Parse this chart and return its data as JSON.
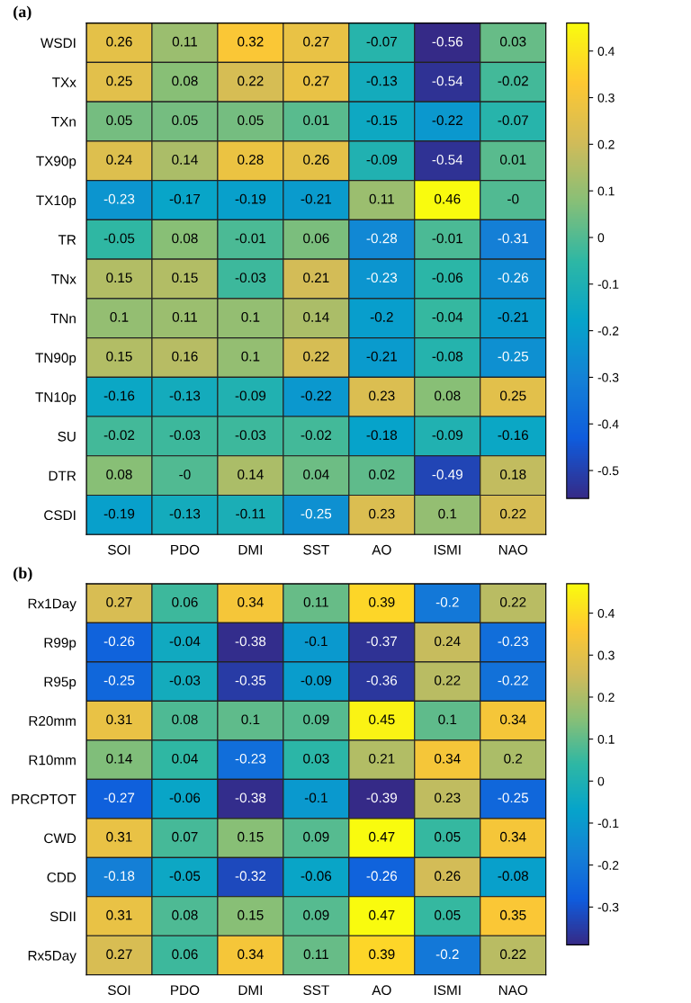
{
  "chart_data": [
    {
      "type": "heatmap",
      "title": "(a)",
      "categories": [
        "SOI",
        "PDO",
        "DMI",
        "SST",
        "AO",
        "ISMI",
        "NAO"
      ],
      "y_categories": [
        "WSDI",
        "TXx",
        "TXn",
        "TX90p",
        "TX10p",
        "TR",
        "TNx",
        "TNn",
        "TN90p",
        "TN10p",
        "SU",
        "DTR",
        "CSDI"
      ],
      "cells": [
        [
          0.26,
          0.11,
          0.32,
          0.27,
          -0.07,
          -0.56,
          0.03
        ],
        [
          0.25,
          0.08,
          0.22,
          0.27,
          -0.13,
          -0.54,
          -0.02
        ],
        [
          0.05,
          0.05,
          0.05,
          0.01,
          -0.15,
          -0.22,
          -0.07
        ],
        [
          0.24,
          0.14,
          0.28,
          0.26,
          -0.09,
          -0.54,
          0.01
        ],
        [
          -0.23,
          -0.17,
          -0.19,
          -0.21,
          0.11,
          0.46,
          -0.0
        ],
        [
          -0.05,
          0.08,
          -0.01,
          0.06,
          -0.28,
          -0.01,
          -0.31
        ],
        [
          0.15,
          0.15,
          -0.03,
          0.21,
          -0.23,
          -0.06,
          -0.26
        ],
        [
          0.1,
          0.11,
          0.1,
          0.14,
          -0.2,
          -0.04,
          -0.21
        ],
        [
          0.15,
          0.16,
          0.1,
          0.22,
          -0.21,
          -0.08,
          -0.25
        ],
        [
          -0.16,
          -0.13,
          -0.09,
          -0.22,
          0.23,
          0.08,
          0.25
        ],
        [
          -0.02,
          -0.03,
          -0.03,
          -0.02,
          -0.18,
          -0.09,
          -0.16
        ],
        [
          0.08,
          -0.0,
          0.14,
          0.04,
          0.02,
          -0.49,
          0.18
        ],
        [
          -0.19,
          -0.13,
          -0.11,
          -0.25,
          0.23,
          0.1,
          0.22
        ]
      ],
      "cell_labels": [
        [
          "0.26",
          "0.11",
          "0.32",
          "0.27",
          "-0.07",
          "-0.56",
          "0.03"
        ],
        [
          "0.25",
          "0.08",
          "0.22",
          "0.27",
          "-0.13",
          "-0.54",
          "-0.02"
        ],
        [
          "0.05",
          "0.05",
          "0.05",
          "0.01",
          "-0.15",
          "-0.22",
          "-0.07"
        ],
        [
          "0.24",
          "0.14",
          "0.28",
          "0.26",
          "-0.09",
          "-0.54",
          "0.01"
        ],
        [
          "-0.23",
          "-0.17",
          "-0.19",
          "-0.21",
          "0.11",
          "0.46",
          "-0"
        ],
        [
          "-0.05",
          "0.08",
          "-0.01",
          "0.06",
          "-0.28",
          "-0.01",
          "-0.31"
        ],
        [
          "0.15",
          "0.15",
          "-0.03",
          "0.21",
          "-0.23",
          "-0.06",
          "-0.26"
        ],
        [
          "0.1",
          "0.11",
          "0.1",
          "0.14",
          "-0.2",
          "-0.04",
          "-0.21"
        ],
        [
          "0.15",
          "0.16",
          "0.1",
          "0.22",
          "-0.21",
          "-0.08",
          "-0.25"
        ],
        [
          "-0.16",
          "-0.13",
          "-0.09",
          "-0.22",
          "0.23",
          "0.08",
          "0.25"
        ],
        [
          "-0.02",
          "-0.03",
          "-0.03",
          "-0.02",
          "-0.18",
          "-0.09",
          "-0.16"
        ],
        [
          "0.08",
          "-0",
          "0.14",
          "0.04",
          "0.02",
          "-0.49",
          "0.18"
        ],
        [
          "-0.19",
          "-0.13",
          "-0.11",
          "-0.25",
          "0.23",
          "0.1",
          "0.22"
        ]
      ],
      "clim": [
        -0.56,
        0.46
      ],
      "cticks": [
        -0.5,
        -0.4,
        -0.3,
        -0.2,
        -0.1,
        0,
        0.1,
        0.2,
        0.3,
        0.4
      ],
      "data_labels": true
    },
    {
      "type": "heatmap",
      "title": "(b)",
      "categories": [
        "SOI",
        "PDO",
        "DMI",
        "SST",
        "AO",
        "ISMI",
        "NAO"
      ],
      "y_categories": [
        "Rx1Day",
        "R99p",
        "R95p",
        "R20mm",
        "R10mm",
        "PRCPTOT",
        "CWD",
        "CDD",
        "SDII",
        "Rx5Day"
      ],
      "cells": [
        [
          0.27,
          0.06,
          0.34,
          0.11,
          0.39,
          -0.2,
          0.22
        ],
        [
          -0.26,
          -0.04,
          -0.38,
          -0.1,
          -0.37,
          0.24,
          -0.23
        ],
        [
          -0.25,
          -0.03,
          -0.35,
          -0.09,
          -0.36,
          0.22,
          -0.22
        ],
        [
          0.31,
          0.08,
          0.1,
          0.09,
          0.45,
          0.1,
          0.34
        ],
        [
          0.14,
          0.04,
          -0.23,
          0.03,
          0.21,
          0.34,
          0.2
        ],
        [
          -0.27,
          -0.06,
          -0.38,
          -0.1,
          -0.39,
          0.23,
          -0.25
        ],
        [
          0.31,
          0.07,
          0.15,
          0.09,
          0.47,
          0.05,
          0.34
        ],
        [
          -0.18,
          -0.05,
          -0.32,
          -0.06,
          -0.26,
          0.26,
          -0.08
        ],
        [
          0.31,
          0.08,
          0.15,
          0.09,
          0.47,
          0.05,
          0.35
        ],
        [
          0.27,
          0.06,
          0.34,
          0.11,
          0.39,
          -0.2,
          0.22
        ]
      ],
      "clim": [
        -0.39,
        0.47
      ],
      "cticks": [
        -0.3,
        -0.2,
        -0.1,
        0,
        0.1,
        0.2,
        0.3,
        0.4
      ],
      "data_labels": true
    }
  ]
}
